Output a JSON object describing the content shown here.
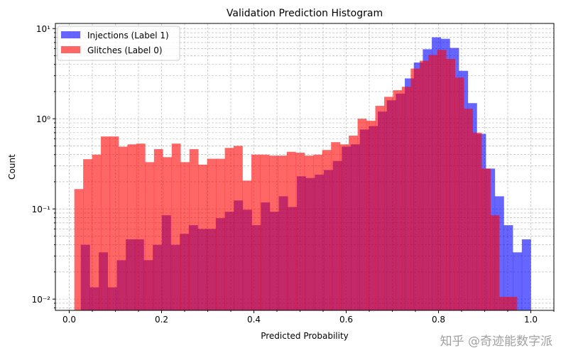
{
  "chart_data": {
    "type": "bar",
    "title": "Validation Prediction Histogram",
    "xlabel": "Predicted Probability",
    "ylabel": "Count",
    "yscale": "log",
    "xlim": [
      -0.03,
      1.05
    ],
    "ylim": [
      0.0075,
      11.4
    ],
    "xticks": [
      0.0,
      0.2,
      0.4,
      0.6,
      0.8,
      1.0
    ],
    "xtick_labels": [
      "0.0",
      "0.2",
      "0.4",
      "0.6",
      "0.8",
      "1.0"
    ],
    "yticks": [
      0.01,
      0.1,
      1,
      10
    ],
    "ytick_labels": [
      "10⁻²",
      "10⁻¹",
      "10⁰",
      "10¹"
    ],
    "grid": true,
    "legend_position": "top-left",
    "series": [
      {
        "name": "Injections (Label 1)",
        "color": "#0000ff",
        "alpha": 0.6,
        "range": [
          0.025,
          1.0
        ],
        "values": [
          0.04,
          0.0135,
          0.033,
          0.0135,
          0.027,
          0.046,
          0.046,
          0.027,
          0.04,
          0.085,
          0.04,
          0.053,
          0.066,
          0.06,
          0.06,
          0.079,
          0.093,
          0.124,
          0.098,
          0.066,
          0.118,
          0.093,
          0.138,
          0.105,
          0.23,
          0.22,
          0.24,
          0.27,
          0.34,
          0.49,
          0.52,
          0.76,
          0.83,
          1.2,
          1.6,
          1.9,
          2.8,
          4.2,
          5.9,
          8.0,
          7.7,
          6.1,
          3.4,
          1.49,
          0.68,
          0.28,
          0.138,
          0.066,
          0.033,
          0.046
        ]
      },
      {
        "name": "Glitches (Label 0)",
        "color": "#ff0000",
        "alpha": 0.6,
        "range": [
          0.011,
          0.97
        ],
        "values": [
          0.166,
          0.356,
          0.4,
          0.636,
          0.636,
          0.49,
          0.52,
          0.53,
          0.33,
          0.46,
          0.375,
          0.53,
          0.33,
          0.46,
          0.31,
          0.36,
          0.36,
          0.475,
          0.5,
          0.206,
          0.4,
          0.4,
          0.39,
          0.39,
          0.43,
          0.42,
          0.39,
          0.4,
          0.45,
          0.55,
          0.52,
          0.65,
          1.0,
          0.95,
          1.39,
          1.75,
          2.07,
          2.26,
          3.6,
          4.4,
          5.1,
          5.8,
          4.6,
          2.86,
          1.29,
          0.7,
          0.28,
          0.085,
          0.0106,
          0.0106
        ]
      }
    ]
  },
  "watermark": "知乎 @奇迹能数字派"
}
